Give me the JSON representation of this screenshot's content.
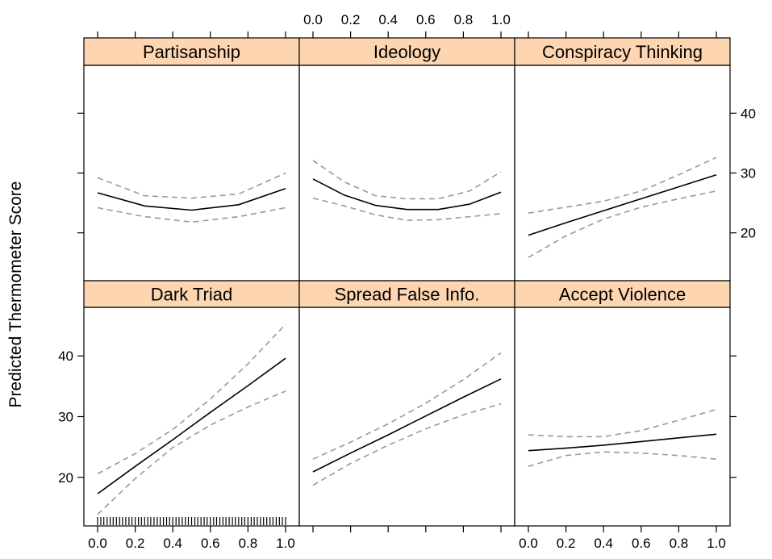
{
  "chart_data": {
    "type": "line",
    "ylabel": "Predicted Thermometer Score",
    "xlim": [
      0,
      1
    ],
    "ylim": [
      12,
      48
    ],
    "x_ticks": [
      0.0,
      0.2,
      0.4,
      0.6,
      0.8,
      1.0
    ],
    "x_tick_labels": [
      "0.0",
      "0.2",
      "0.4",
      "0.6",
      "0.8",
      "1.0"
    ],
    "y_ticks": [
      20,
      30,
      40
    ],
    "y_tick_labels": [
      "20",
      "30",
      "40"
    ],
    "colors": {
      "strip": "#fdd5b1",
      "fit": "#000000",
      "ci": "#999999"
    },
    "panels": [
      {
        "title": "Partisanship",
        "x": [
          0,
          0.25,
          0.5,
          0.75,
          1.0
        ],
        "fit": [
          26.7,
          24.5,
          23.8,
          24.7,
          27.4
        ],
        "lower": [
          24.2,
          22.7,
          21.8,
          22.7,
          24.2
        ],
        "upper": [
          29.2,
          26.2,
          25.8,
          26.5,
          30.0
        ]
      },
      {
        "title": "Ideology",
        "x": [
          0,
          0.167,
          0.333,
          0.5,
          0.667,
          0.833,
          1.0
        ],
        "fit": [
          29.0,
          26.3,
          24.6,
          23.9,
          23.9,
          24.8,
          26.8
        ],
        "lower": [
          25.8,
          24.5,
          23.0,
          22.1,
          22.2,
          22.7,
          23.2
        ],
        "upper": [
          32.1,
          28.5,
          26.2,
          25.7,
          25.7,
          27.0,
          30.2
        ]
      },
      {
        "title": "Conspiracy Thinking",
        "x": [
          0,
          0.2,
          0.4,
          0.6,
          0.8,
          1.0
        ],
        "fit": [
          19.6,
          21.7,
          23.7,
          25.7,
          27.7,
          29.7
        ],
        "lower": [
          15.9,
          19.5,
          22.3,
          24.3,
          25.7,
          27.0
        ],
        "upper": [
          23.3,
          24.3,
          25.3,
          27.0,
          29.7,
          32.6
        ]
      },
      {
        "title": "Dark Triad",
        "x": [
          0,
          0.2,
          0.4,
          0.6,
          0.8,
          1.0
        ],
        "fit": [
          17.3,
          21.8,
          26.2,
          30.7,
          35.1,
          39.6
        ],
        "lower": [
          13.9,
          19.8,
          24.9,
          28.6,
          31.6,
          34.2
        ],
        "upper": [
          20.6,
          23.9,
          27.9,
          32.9,
          38.7,
          45.2
        ]
      },
      {
        "title": "Spread False Info.",
        "x": [
          0,
          0.2,
          0.4,
          0.6,
          0.8,
          1.0
        ],
        "fit": [
          20.9,
          24.0,
          27.0,
          30.1,
          33.2,
          36.2
        ],
        "lower": [
          18.7,
          22.3,
          25.3,
          28.0,
          30.3,
          32.1
        ],
        "upper": [
          23.0,
          25.8,
          28.8,
          32.2,
          36.1,
          40.5
        ]
      },
      {
        "title": "Accept Violence",
        "x": [
          0,
          0.2,
          0.4,
          0.6,
          0.8,
          1.0
        ],
        "fit": [
          24.4,
          24.8,
          25.3,
          25.9,
          26.5,
          27.1
        ],
        "lower": [
          21.8,
          23.6,
          24.2,
          24.0,
          23.6,
          23.0
        ],
        "upper": [
          27.0,
          26.7,
          26.7,
          27.7,
          29.4,
          31.2
        ]
      }
    ],
    "rug_x": [
      0.0,
      0.017,
      0.033,
      0.05,
      0.067,
      0.083,
      0.1,
      0.117,
      0.133,
      0.15,
      0.167,
      0.183,
      0.2,
      0.217,
      0.233,
      0.25,
      0.267,
      0.283,
      0.3,
      0.317,
      0.333,
      0.35,
      0.367,
      0.383,
      0.4,
      0.417,
      0.433,
      0.45,
      0.467,
      0.483,
      0.5,
      0.517,
      0.533,
      0.55,
      0.567,
      0.583,
      0.6,
      0.617,
      0.633,
      0.65,
      0.667,
      0.683,
      0.7,
      0.717,
      0.733,
      0.75,
      0.767,
      0.783,
      0.8,
      0.817,
      0.833,
      0.85,
      0.867,
      0.883,
      0.9,
      0.917,
      0.933,
      0.95,
      0.967,
      0.983,
      1.0
    ]
  }
}
